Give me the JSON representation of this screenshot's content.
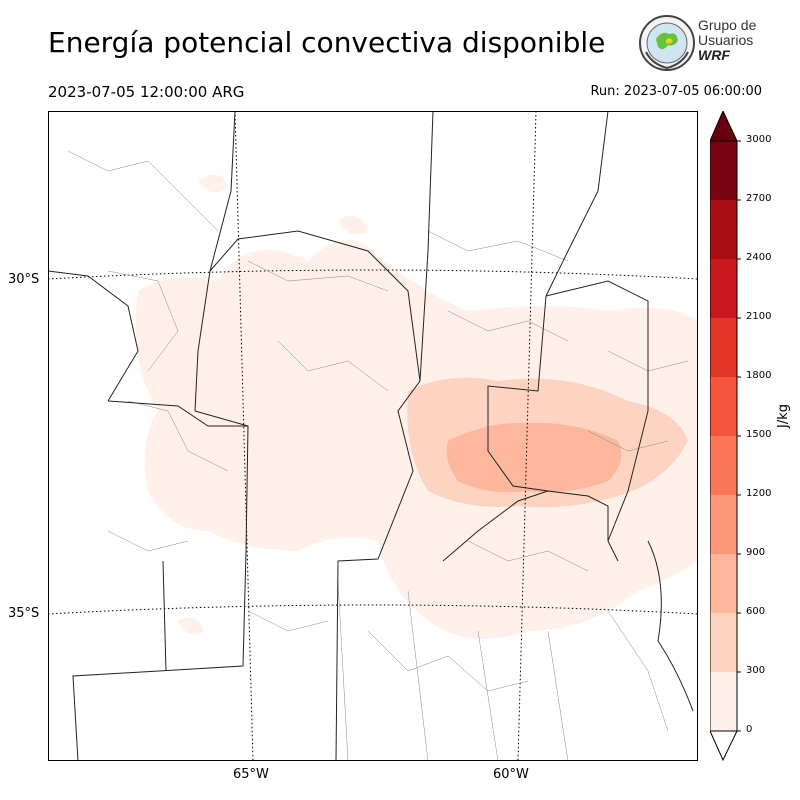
{
  "title": "Energía potencial convectiva disponible",
  "valid_time": "2023-07-05 12:00:00 ARG",
  "run_time": "Run: 2023-07-05 06:00:00",
  "logo": {
    "line1": "Grupo de",
    "line2": "Usuarios",
    "line3": "WRF"
  },
  "map": {
    "lat_labels": [
      "30°S",
      "35°S"
    ],
    "lon_labels": [
      "65°W",
      "60°W"
    ]
  },
  "colorbar": {
    "unit": "J/kg",
    "ticks": [
      "0",
      "300",
      "600",
      "900",
      "1200",
      "1500",
      "1800",
      "2100",
      "2400",
      "2700",
      "3000"
    ],
    "colors": [
      "#fff0e9",
      "#fdd4c2",
      "#fcb79c",
      "#fc9777",
      "#fb7757",
      "#f5553d",
      "#e33429",
      "#c9181d",
      "#a90f15",
      "#7a0510"
    ],
    "over_color": "#67000d"
  }
}
